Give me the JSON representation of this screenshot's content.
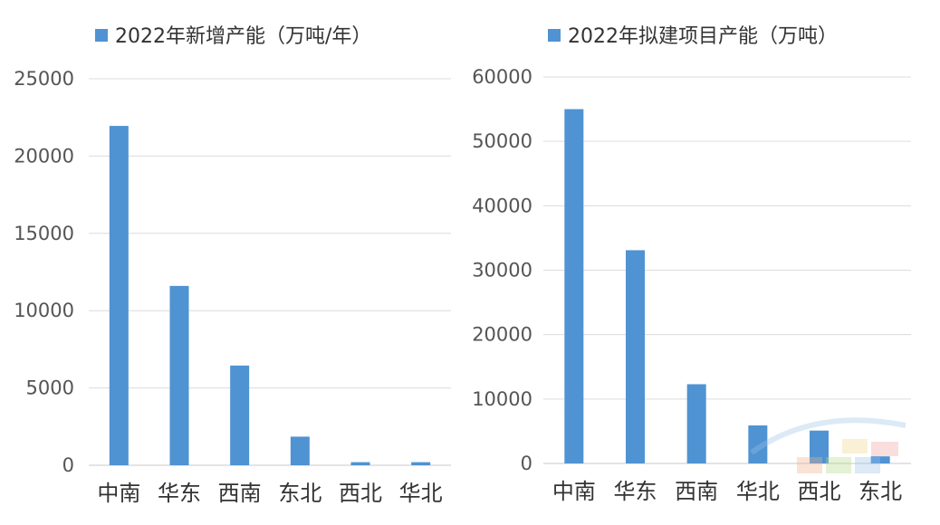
{
  "chart_data": [
    {
      "type": "bar",
      "categories": [
        "中南",
        "华东",
        "西南",
        "东北",
        "西北",
        "华北"
      ],
      "series": [
        {
          "name": "2022年新增产能（万吨/年）",
          "values": [
            21950,
            11600,
            6450,
            1850,
            200,
            200
          ]
        }
      ],
      "ylim": [
        0,
        25000
      ],
      "yticks": [
        "0",
        "5000",
        "10000",
        "15000",
        "20000",
        "25000"
      ],
      "grid": true,
      "legend": "top-left",
      "color": "#4f93d2"
    },
    {
      "type": "bar",
      "categories": [
        "中南",
        "华东",
        "西南",
        "华北",
        "西北",
        "东北"
      ],
      "series": [
        {
          "name": "2022年拟建项目产能（万吨）",
          "values": [
            55000,
            33100,
            12300,
            5900,
            5100,
            1100
          ]
        }
      ],
      "ylim": [
        0,
        60000
      ],
      "yticks": [
        "0",
        "10000",
        "20000",
        "30000",
        "40000",
        "50000",
        "60000"
      ],
      "grid": true,
      "legend": "top-left",
      "color": "#4f93d2"
    }
  ]
}
